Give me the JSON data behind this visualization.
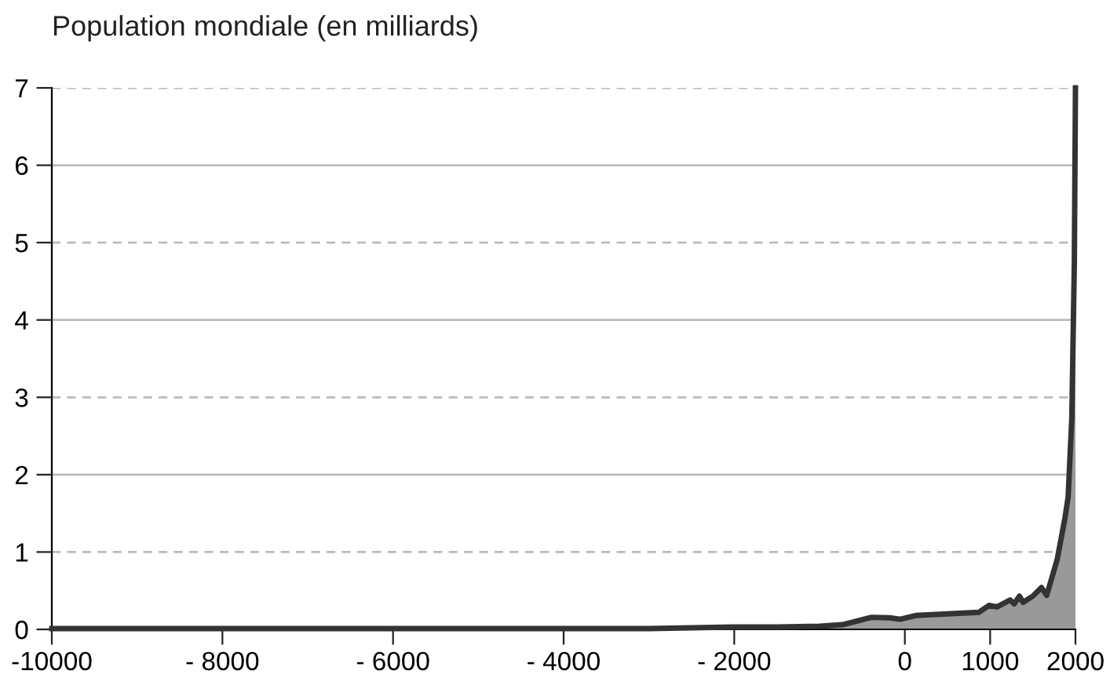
{
  "chart_data": {
    "type": "area",
    "title": "Population mondiale (en milliards)",
    "series": [
      {
        "color": "#333333",
        "x": [
          -10000,
          -8000,
          -6000,
          -5000,
          -4000,
          -3000,
          -2000,
          -1500,
          -1000,
          -730,
          -392,
          -177,
          -55,
          129,
          500,
          866,
          988,
          1080,
          1233,
          1282,
          1343,
          1386,
          1500,
          1601,
          1663,
          1785,
          1877,
          1914,
          1957,
          1987,
          2000
        ],
        "values": [
          0.01,
          0.01,
          0.01,
          0.01,
          0.01,
          0.01,
          0.03,
          0.03,
          0.04,
          0.06,
          0.156,
          0.15,
          0.13,
          0.18,
          0.2,
          0.22,
          0.31,
          0.29,
          0.38,
          0.33,
          0.43,
          0.35,
          0.43,
          0.54,
          0.44,
          0.9,
          1.44,
          1.71,
          2.72,
          4.75,
          7.0
        ]
      }
    ],
    "xlim": [
      -10000,
      2000
    ],
    "xticks": [
      {
        "value": -10000,
        "label": "-10000"
      },
      {
        "value": -8000,
        "label": "- 8000"
      },
      {
        "value": -6000,
        "label": "- 6000"
      },
      {
        "value": -4000,
        "label": "- 4000"
      },
      {
        "value": -2000,
        "label": "- 2000"
      },
      0,
      1000,
      2000
    ],
    "ylim": [
      0,
      7
    ],
    "yticks": [
      0,
      1,
      2,
      3,
      4,
      5,
      6,
      7
    ],
    "grid": "y"
  }
}
